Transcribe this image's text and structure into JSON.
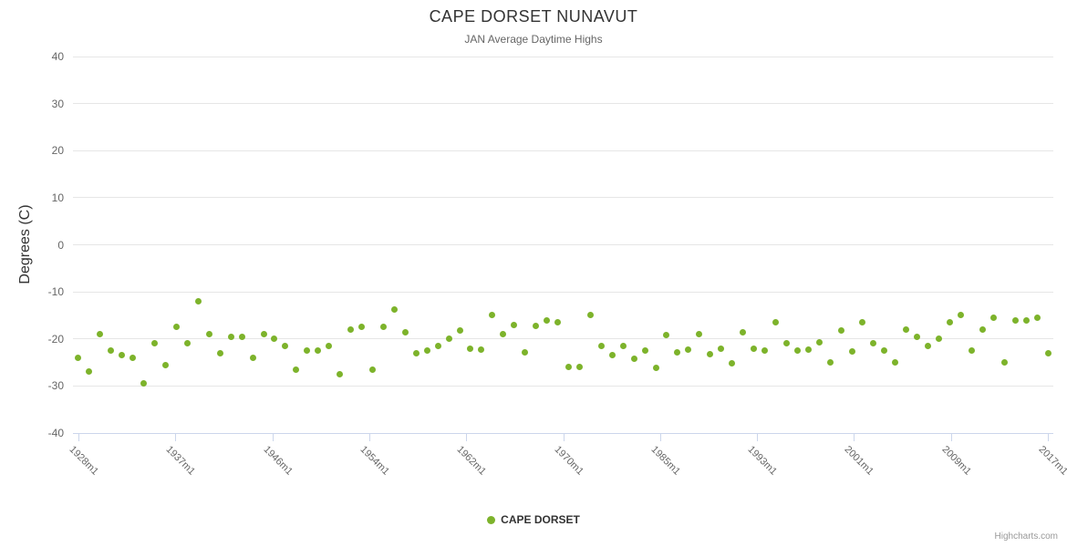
{
  "credits": "Highcharts.com",
  "chart_data": {
    "type": "scatter",
    "title": "CAPE DORSET NUNAVUT",
    "subtitle": "JAN Average Daytime Highs",
    "xlabel": "",
    "ylabel": "Degrees (C)",
    "ylim": [
      -40,
      40
    ],
    "grid": true,
    "legend_position": "bottom-center",
    "point_color": "#7db32b",
    "grid_color": "#e6e6e6",
    "axis_line_color": "#ccd6eb",
    "ytick_values": [
      40,
      30,
      20,
      10,
      0,
      -10,
      -20,
      -30,
      -40
    ],
    "ytick_labels": [
      "40",
      "30",
      "20",
      "10",
      "0",
      "-10",
      "-20",
      "-30",
      "-40"
    ],
    "xtick_labels": [
      "1928m1",
      "1937m1",
      "1946m1",
      "1954m1",
      "1962m1",
      "1970m1",
      "1985m1",
      "1993m1",
      "2001m1",
      "2009m1",
      "2017m1"
    ],
    "x_range_note": "January of each year, 1928 to 2017",
    "series": [
      {
        "name": "CAPE DORSET",
        "color": "#7db32b",
        "values": [
          -24,
          -27,
          -19,
          -22.5,
          -23.5,
          -24,
          -29.5,
          -21,
          -25.5,
          -17.5,
          -21,
          -12,
          -19,
          -23,
          -19.5,
          -19.5,
          -24,
          -19,
          -20,
          -21.5,
          -26.5,
          -22.5,
          -22.5,
          -21.5,
          -27.5,
          -18,
          -17.5,
          -26.5,
          -17.5,
          -13.8,
          -18.5,
          -23,
          -22.5,
          -21.5,
          -20,
          -18.2,
          -22,
          -22.2,
          -15,
          -19,
          -17,
          -22.8,
          -17.2,
          -16,
          -16.5,
          -26,
          -26,
          -15,
          -21.5,
          -23.5,
          -21.5,
          -24.2,
          -22.5,
          -26.2,
          -19.2,
          -22.8,
          -22.3,
          -19,
          -23.2,
          -22,
          -25.2,
          -18.5,
          -22,
          -22.5,
          -16.4,
          -21,
          -22.5,
          -22.3,
          -20.8,
          -25,
          -18.3,
          -22.7,
          -16.5,
          -21,
          -22.5,
          -25,
          -18,
          -19.5,
          -21.5,
          -20,
          -16.5,
          -15,
          -22.5,
          -18,
          -15.5,
          -25,
          -16,
          -16,
          -15.5,
          -23
        ]
      }
    ]
  }
}
